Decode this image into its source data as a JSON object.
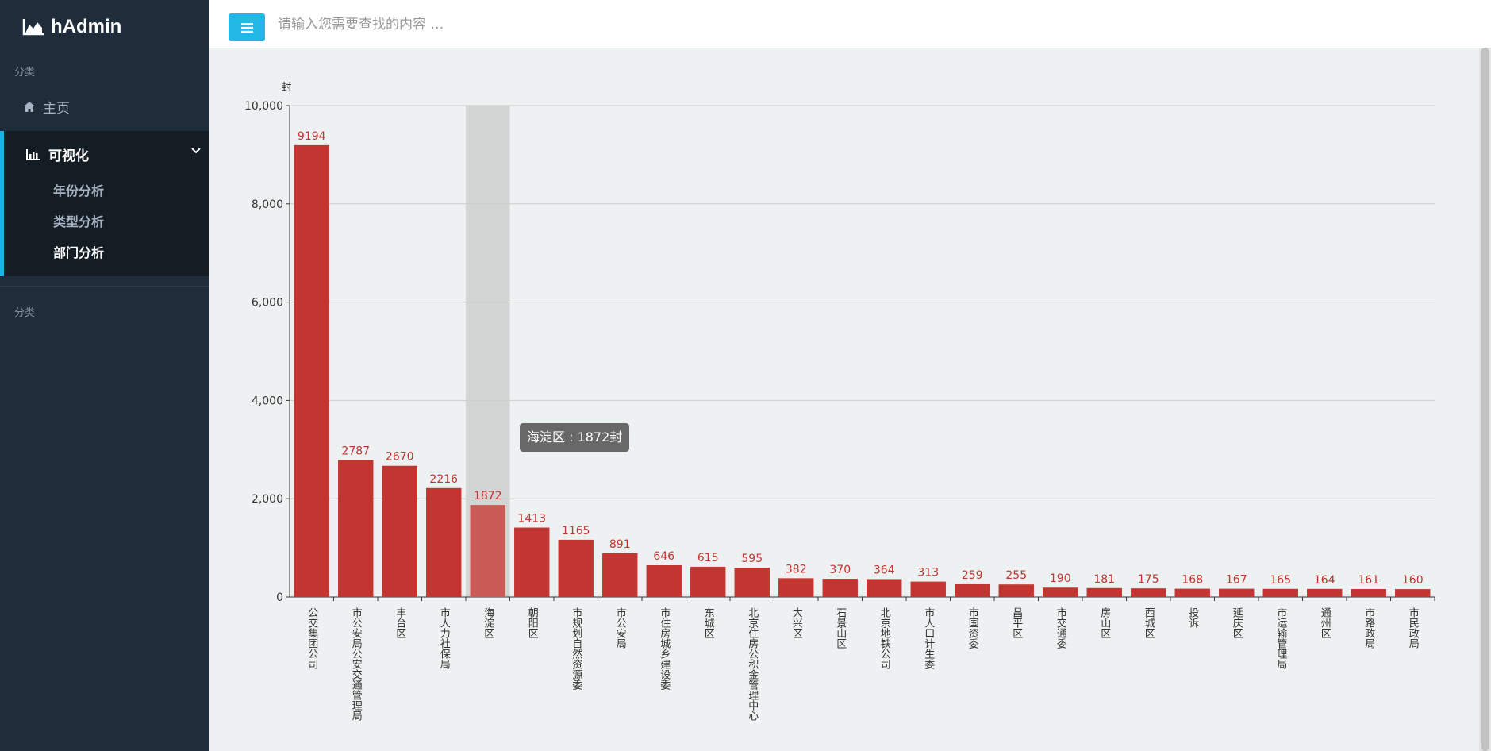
{
  "sidebar": {
    "brand": "hAdmin",
    "category_label_1": "分类",
    "home_label": "主页",
    "vis_label": "可视化",
    "sub_items": [
      {
        "label": "年份分析"
      },
      {
        "label": "类型分析"
      },
      {
        "label": "部门分析"
      }
    ],
    "category_label_2": "分类"
  },
  "topbar": {
    "search_placeholder": "请输入您需要查找的内容 …"
  },
  "colors": {
    "bar": "#c23531",
    "bar_highlight": "#c95a56",
    "accent": "#23b7e5"
  },
  "tooltip": "海淀区 : 1872封",
  "chart_data": {
    "type": "bar",
    "ylabel": "封",
    "ylim": [
      0,
      10000
    ],
    "yticks": [
      "0",
      "2,000",
      "4,000",
      "6,000",
      "8,000",
      "10,000"
    ],
    "grid": true,
    "highlight_index": 4,
    "categories": [
      "公交集团公司",
      "市公安局公安交通管理局",
      "丰台区",
      "市人力社保局",
      "海淀区",
      "朝阳区",
      "市规划自然资源委",
      "市公安局",
      "市住房城乡建设委",
      "东城区",
      "北京住房公积金管理中心",
      "大兴区",
      "石景山区",
      "北京地铁公司",
      "市人口计生委",
      "市国资委",
      "昌平区",
      "市交通委",
      "房山区",
      "西城区",
      "投诉",
      "延庆区",
      "市运输管理局",
      "通州区",
      "市路政局",
      "市民政局"
    ],
    "values": [
      9194,
      2787,
      2670,
      2216,
      1872,
      1413,
      1165,
      891,
      646,
      615,
      595,
      382,
      370,
      364,
      313,
      259,
      255,
      190,
      181,
      175,
      168,
      167,
      165,
      164,
      161,
      160
    ]
  }
}
